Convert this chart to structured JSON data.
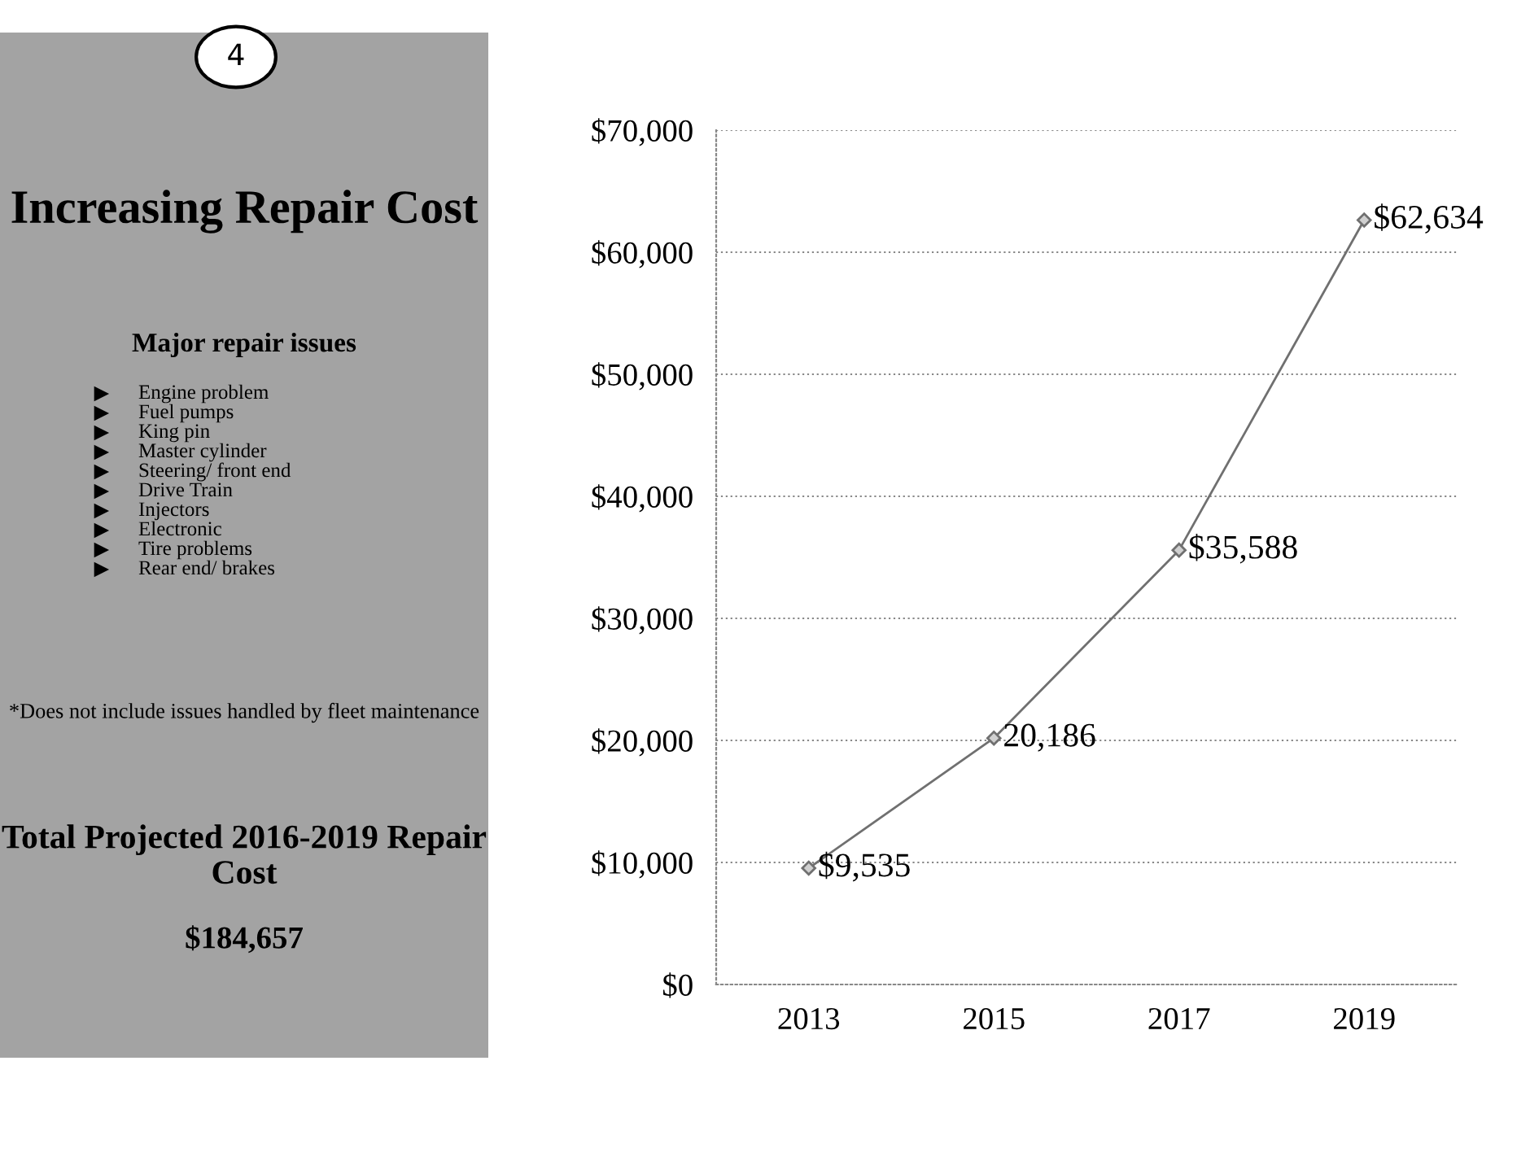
{
  "chart_data": {
    "type": "line",
    "title": "Increasing Repair Cost",
    "subtitle": "Major repair issues",
    "annotations": [
      "4",
      "Engine problem",
      "Fuel pumps",
      "King pin",
      "Master cylinder",
      "Steering/ front end",
      "Drive Train",
      "Injectors",
      "Electronic",
      "Tire problems",
      "Rear end/ brakes",
      "*Does not include issues handled by fleet maintenance",
      "Total Projected 2016-2019 Repair Cost",
      "$184,657"
    ],
    "categories": [
      "2013",
      "2015",
      "2017",
      "2019"
    ],
    "values": [
      9535,
      20186,
      35588,
      62634
    ],
    "value_labels": [
      "$9,535",
      "20,186",
      "$35,588",
      "$62,634"
    ],
    "color": "#707070",
    "marker": "diamond",
    "ylim": [
      0,
      70000
    ],
    "yticks": [
      {
        "value": 0,
        "label": "$0"
      },
      {
        "value": 10000,
        "label": "$10,000"
      },
      {
        "value": 20000,
        "label": "$20,000"
      },
      {
        "value": 30000,
        "label": "$30,000"
      },
      {
        "value": 40000,
        "label": "$40,000"
      },
      {
        "value": 50000,
        "label": "$50,000"
      },
      {
        "value": 60000,
        "label": "$60,000"
      },
      {
        "value": 70000,
        "label": "$70,000"
      }
    ],
    "grid": "y"
  }
}
